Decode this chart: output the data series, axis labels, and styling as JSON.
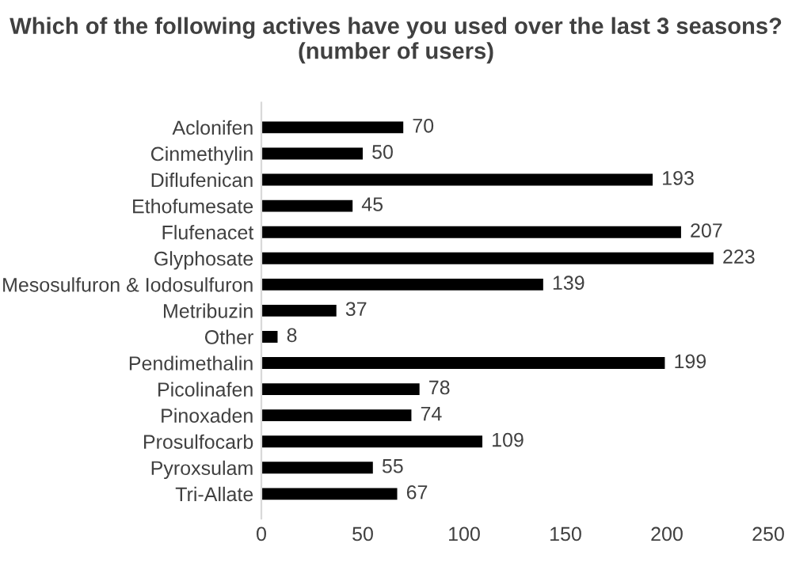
{
  "chart_data": {
    "type": "bar",
    "orientation": "horizontal",
    "title": "Which of the following actives have you used over the last 3 seasons? (number of users)",
    "categories": [
      "Aclonifen",
      "Cinmethylin",
      "Diflufenican",
      "Ethofumesate",
      "Flufenacet",
      "Glyphosate",
      "Mesosulfuron & Iodosulfuron",
      "Metribuzin",
      "Other",
      "Pendimethalin",
      "Picolinafen",
      "Pinoxaden",
      "Prosulfocarb",
      "Pyroxsulam",
      "Tri-Allate"
    ],
    "values": [
      70,
      50,
      193,
      45,
      207,
      223,
      139,
      37,
      8,
      199,
      78,
      74,
      109,
      55,
      67
    ],
    "color": "#000000",
    "xlim": [
      0,
      250
    ],
    "xticks": [
      0,
      50,
      100,
      150,
      200,
      250
    ],
    "grid": false,
    "data_labels": true
  }
}
